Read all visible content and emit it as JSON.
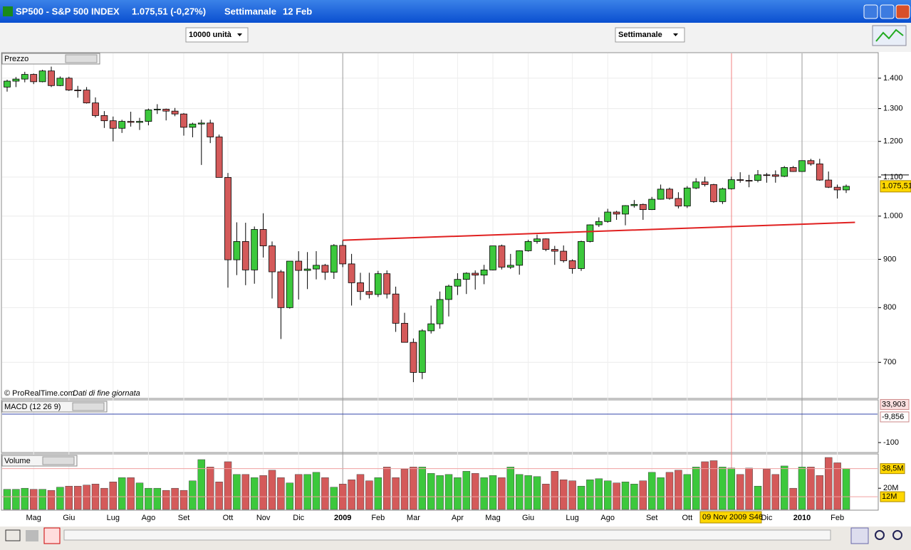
{
  "window": {
    "title": "SP500 - S&P 500 INDEX",
    "price": "1.075,51 (-0,27%)",
    "period": "Settimanale",
    "date": "12 Feb"
  },
  "toolbar": {
    "quantity": "10000 unità",
    "timeframe": "Settimanale"
  },
  "chart_data": [
    {
      "type": "candlestick",
      "title": "Prezzo",
      "footer": "© ProRealTime.com",
      "footer_note": "Dati di fine giornata",
      "cursor_label": "09 Nov 2009 S46",
      "log_scale": true,
      "grid": true,
      "up_color": "#3cc83c",
      "down_color": "#d45a5a",
      "ylim": [
        641,
        1490
      ],
      "yticks": [
        {
          "value": 700,
          "label": "700"
        },
        {
          "value": 800,
          "label": "800"
        },
        {
          "value": 900,
          "label": "900"
        },
        {
          "value": 1000,
          "label": "1.000"
        },
        {
          "value": 1100,
          "label": "1.100"
        },
        {
          "value": 1200,
          "label": "1.200"
        },
        {
          "value": 1300,
          "label": "1.300"
        },
        {
          "value": 1400,
          "label": "1.400"
        }
      ],
      "last": {
        "value": 1075.51,
        "label": "1.075,51"
      },
      "trendline": {
        "x": [
          38,
          96
        ],
        "y": [
          943,
          985
        ],
        "color": "#e02020"
      },
      "categories": [
        null,
        null,
        null,
        "Mag",
        null,
        null,
        null,
        "Giu",
        null,
        null,
        null,
        null,
        "Lug",
        null,
        null,
        null,
        "Ago",
        null,
        null,
        null,
        "Set",
        null,
        null,
        null,
        null,
        "Ott",
        null,
        null,
        null,
        "Nov",
        null,
        null,
        null,
        "Dic",
        null,
        null,
        null,
        null,
        "2009",
        null,
        null,
        null,
        "Feb",
        null,
        null,
        null,
        "Mar",
        null,
        null,
        null,
        null,
        "Apr",
        null,
        null,
        null,
        "Mag",
        null,
        null,
        null,
        "Giu",
        null,
        null,
        null,
        null,
        "Lug",
        null,
        null,
        null,
        "Ago",
        null,
        null,
        null,
        null,
        "Set",
        null,
        null,
        null,
        "Ott",
        null,
        null,
        null,
        null,
        null,
        null,
        null,
        null,
        "Dic",
        null,
        null,
        null,
        "2010",
        null,
        null,
        null,
        "Feb",
        null
      ],
      "ohlc": [
        [
          1370,
          1395,
          1355,
          1390
        ],
        [
          1390,
          1404,
          1370,
          1397
        ],
        [
          1397,
          1422,
          1386,
          1413
        ],
        [
          1413,
          1416,
          1380,
          1388
        ],
        [
          1388,
          1429,
          1386,
          1425
        ],
        [
          1425,
          1440,
          1370,
          1375
        ],
        [
          1375,
          1406,
          1373,
          1400
        ],
        [
          1400,
          1405,
          1357,
          1360
        ],
        [
          1360,
          1374,
          1335,
          1360
        ],
        [
          1360,
          1370,
          1316,
          1318
        ],
        [
          1318,
          1336,
          1272,
          1278
        ],
        [
          1278,
          1292,
          1240,
          1262
        ],
        [
          1262,
          1275,
          1200,
          1239
        ],
        [
          1239,
          1265,
          1225,
          1260
        ],
        [
          1260,
          1290,
          1244,
          1257
        ],
        [
          1257,
          1271,
          1234,
          1260
        ],
        [
          1260,
          1300,
          1248,
          1296
        ],
        [
          1296,
          1314,
          1283,
          1298
        ],
        [
          1298,
          1300,
          1263,
          1292
        ],
        [
          1292,
          1302,
          1276,
          1283
        ],
        [
          1283,
          1286,
          1217,
          1242
        ],
        [
          1242,
          1256,
          1212,
          1252
        ],
        [
          1252,
          1265,
          1133,
          1255
        ],
        [
          1255,
          1265,
          1195,
          1213
        ],
        [
          1213,
          1220,
          1099,
          1099
        ],
        [
          1099,
          1111,
          840,
          899
        ],
        [
          899,
          985,
          866,
          940
        ],
        [
          940,
          984,
          845,
          877
        ],
        [
          877,
          975,
          848,
          968
        ],
        [
          968,
          1007,
          904,
          930
        ],
        [
          930,
          940,
          818,
          873
        ],
        [
          873,
          877,
          741,
          800
        ],
        [
          800,
          896,
          798,
          896
        ],
        [
          896,
          918,
          816,
          876
        ],
        [
          876,
          916,
          837,
          879
        ],
        [
          879,
          918,
          857,
          887
        ],
        [
          887,
          890,
          856,
          872
        ],
        [
          872,
          934,
          858,
          931
        ],
        [
          931,
          943,
          883,
          890
        ],
        [
          890,
          912,
          804,
          850
        ],
        [
          850,
          871,
          815,
          832
        ],
        [
          832,
          871,
          818,
          826
        ],
        [
          826,
          875,
          821,
          869
        ],
        [
          869,
          876,
          818,
          827
        ],
        [
          827,
          842,
          754,
          770
        ],
        [
          770,
          790,
          735,
          735
        ],
        [
          735,
          742,
          667,
          683
        ],
        [
          683,
          759,
          672,
          756
        ],
        [
          756,
          804,
          751,
          769
        ],
        [
          769,
          832,
          760,
          816
        ],
        [
          816,
          846,
          783,
          843
        ],
        [
          843,
          870,
          825,
          857
        ],
        [
          857,
          872,
          827,
          870
        ],
        [
          870,
          876,
          836,
          866
        ],
        [
          866,
          888,
          847,
          877
        ],
        [
          877,
          930,
          876,
          930
        ],
        [
          930,
          933,
          878,
          883
        ],
        [
          883,
          912,
          879,
          887
        ],
        [
          887,
          920,
          867,
          919
        ],
        [
          919,
          944,
          917,
          940
        ],
        [
          940,
          956,
          935,
          946
        ],
        [
          946,
          947,
          918,
          922
        ],
        [
          922,
          930,
          888,
          918
        ],
        [
          918,
          931,
          893,
          897
        ],
        [
          897,
          900,
          869,
          880
        ],
        [
          880,
          942,
          875,
          940
        ],
        [
          940,
          980,
          938,
          979
        ],
        [
          979,
          997,
          974,
          987
        ],
        [
          987,
          1018,
          984,
          1010
        ],
        [
          1010,
          1013,
          991,
          1005
        ],
        [
          1005,
          1027,
          978,
          1026
        ],
        [
          1026,
          1040,
          1021,
          1029
        ],
        [
          1029,
          1031,
          991,
          1016
        ],
        [
          1016,
          1048,
          1015,
          1042
        ],
        [
          1042,
          1080,
          1041,
          1068
        ],
        [
          1068,
          1072,
          1041,
          1044
        ],
        [
          1044,
          1060,
          1019,
          1025
        ],
        [
          1025,
          1076,
          1020,
          1071
        ],
        [
          1071,
          1097,
          1068,
          1087
        ],
        [
          1087,
          1101,
          1075,
          1080
        ],
        [
          1080,
          1082,
          1033,
          1036
        ],
        [
          1036,
          1072,
          1030,
          1069
        ],
        [
          1069,
          1101,
          1067,
          1093
        ],
        [
          1093,
          1113,
          1085,
          1091
        ],
        [
          1091,
          1106,
          1073,
          1091
        ],
        [
          1091,
          1119,
          1086,
          1106
        ],
        [
          1106,
          1111,
          1085,
          1106
        ],
        [
          1106,
          1118,
          1085,
          1102
        ],
        [
          1102,
          1130,
          1100,
          1126
        ],
        [
          1126,
          1130,
          1114,
          1115
        ],
        [
          1115,
          1145,
          1114,
          1145
        ],
        [
          1145,
          1150,
          1131,
          1136
        ],
        [
          1136,
          1150,
          1090,
          1092
        ],
        [
          1092,
          1115,
          1071,
          1073
        ],
        [
          1073,
          1080,
          1044,
          1066
        ],
        [
          1066,
          1080,
          1058,
          1075.51
        ]
      ]
    },
    {
      "type": "indicator",
      "title": "MACD (12 26 9)",
      "ylim": [
        -135,
        50
      ],
      "yticks": [
        -100
      ],
      "markers": [
        {
          "value": 33.903,
          "label": "33,903"
        },
        {
          "value": -9.856,
          "label": "-9,856"
        }
      ]
    },
    {
      "type": "bar",
      "title": "Volume",
      "ylim": [
        0,
        51
      ],
      "yticks": [
        {
          "value": 20,
          "label": "20M"
        }
      ],
      "markers": [
        {
          "value": 38.5,
          "label": "38,5M"
        },
        {
          "value": 12,
          "label": "12M"
        }
      ],
      "values": [
        19,
        19,
        20,
        19,
        19,
        18,
        21,
        22,
        22,
        23,
        24,
        20,
        26,
        30,
        30,
        25,
        20,
        20,
        18,
        20,
        18,
        27,
        47,
        40,
        26,
        45,
        33,
        33,
        30,
        32,
        37,
        30,
        25,
        33,
        33,
        35,
        30,
        21,
        24,
        28,
        33,
        27,
        30,
        40,
        30,
        38,
        40,
        40,
        34,
        32,
        33,
        30,
        36,
        34,
        30,
        32,
        30,
        40,
        33,
        32,
        31,
        24,
        36,
        28,
        27,
        22,
        28,
        29,
        27,
        25,
        26,
        24,
        27,
        35,
        30,
        35,
        37,
        33,
        40,
        45,
        46,
        40,
        39,
        33,
        39,
        22,
        38,
        33,
        41,
        20,
        40,
        40,
        32,
        49,
        44,
        38.5
      ]
    }
  ]
}
